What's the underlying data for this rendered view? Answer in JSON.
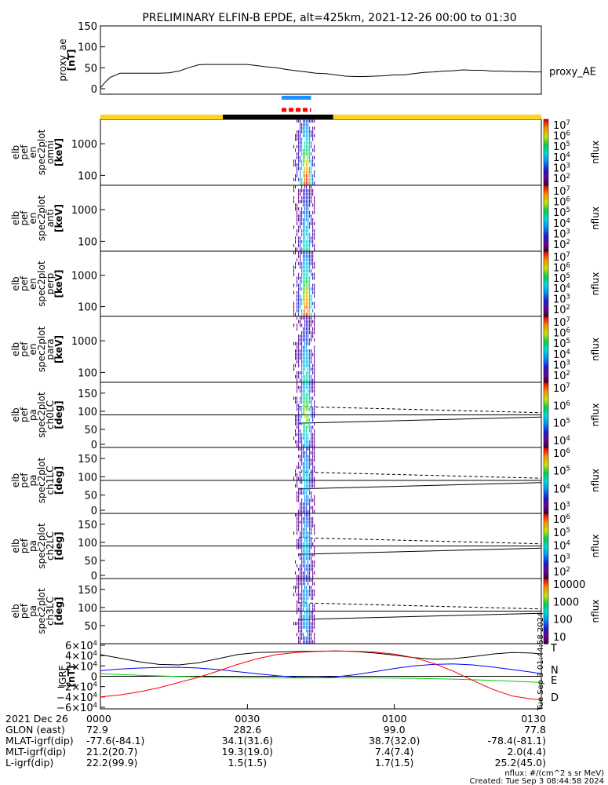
{
  "title": "PRELIMINARY ELFIN-B EPDE, alt=425km, 2021-12-26 00:00 to 01:30",
  "chart_data": [
    {
      "type": "line",
      "name": "proxy_ae",
      "ylabel_lines": [
        "proxy_ae",
        "[nT]"
      ],
      "ylim": [
        0,
        150
      ],
      "yticks": [
        "150",
        "100",
        "50",
        "0"
      ],
      "legend": "proxy_AE",
      "series": [
        {
          "name": "proxy_AE",
          "color": "#000000",
          "x_minutes": [
            0,
            1,
            2,
            4,
            6,
            8,
            10,
            12,
            14,
            16,
            18,
            20,
            21,
            22,
            24,
            26,
            28,
            30,
            32,
            34,
            36,
            38,
            40,
            42,
            44,
            46,
            48,
            50,
            52,
            54,
            56,
            58,
            60,
            62,
            64,
            66,
            68,
            70,
            72,
            74,
            76,
            78,
            80,
            82,
            84,
            86,
            88,
            90
          ],
          "values": [
            2,
            16,
            27,
            37,
            37,
            37,
            37,
            37,
            38,
            42,
            50,
            57,
            58,
            58,
            58,
            58,
            58,
            58,
            55,
            52,
            50,
            46,
            43,
            40,
            37,
            36,
            33,
            30,
            29,
            29,
            30,
            31,
            33,
            33,
            36,
            39,
            40,
            42,
            43,
            45,
            44,
            44,
            42,
            42,
            41,
            41,
            40,
            40
          ]
        }
      ]
    },
    {
      "type": "heatmap",
      "name": "spec2plot_omni",
      "ylabel_lines": [
        "elb",
        "pef",
        "en",
        "spec2plot",
        "omni",
        "[keV]"
      ],
      "yscale": "log",
      "yticks": [
        "1000",
        "100"
      ],
      "colorbar_label": "nflux",
      "colorbar_range_exponent": [
        1,
        7
      ],
      "colorbar_ticks": [
        "10^7",
        "10^6",
        "10^5",
        "10^4",
        "10^3",
        "10^2"
      ],
      "active_time_minutes": [
        39.5,
        43.7
      ]
    },
    {
      "type": "heatmap",
      "name": "spec2plot_anti",
      "ylabel_lines": [
        "elb",
        "pef",
        "en",
        "spec2plot",
        "anti",
        "[keV]"
      ],
      "yscale": "log",
      "yticks": [
        "1000",
        "100"
      ],
      "colorbar_label": "nflux",
      "colorbar_range_exponent": [
        1,
        7
      ],
      "colorbar_ticks": [
        "10^7",
        "10^6",
        "10^5",
        "10^4",
        "10^3",
        "10^2"
      ],
      "active_time_minutes": [
        39.5,
        43.7
      ]
    },
    {
      "type": "heatmap",
      "name": "spec2plot_perp",
      "ylabel_lines": [
        "elb",
        "pef",
        "en",
        "spec2plot",
        "perp",
        "[keV]"
      ],
      "yscale": "log",
      "yticks": [
        "1000",
        "100"
      ],
      "colorbar_label": "nflux",
      "colorbar_range_exponent": [
        1,
        7
      ],
      "colorbar_ticks": [
        "10^7",
        "10^6",
        "10^5",
        "10^4",
        "10^3",
        "10^2"
      ],
      "active_time_minutes": [
        39.5,
        43.7
      ]
    },
    {
      "type": "heatmap",
      "name": "spec2plot_para",
      "ylabel_lines": [
        "elb",
        "pef",
        "en",
        "spec2plot",
        "para",
        "[keV]"
      ],
      "yscale": "log",
      "yticks": [
        "1000",
        "100"
      ],
      "colorbar_label": "nflux",
      "colorbar_range_exponent": [
        1,
        7
      ],
      "colorbar_ticks": [
        "10^7",
        "10^6",
        "10^5",
        "10^4",
        "10^3",
        "10^2"
      ],
      "active_time_minutes": [
        39.5,
        43.7
      ]
    },
    {
      "type": "heatmap",
      "name": "spec2plot_ch0LC",
      "ylabel_lines": [
        "elb",
        "pef",
        "pa",
        "spec2plot",
        "ch0LC",
        "[deg]"
      ],
      "ylim": [
        0,
        180
      ],
      "yticks": [
        "150",
        "100",
        "50",
        "0"
      ],
      "colorbar_label": "nflux",
      "colorbar_ticks": [
        "10^7",
        "10^6",
        "10^5",
        "10^4"
      ],
      "loss_cone_deg": [
        67,
        84
      ],
      "anti_loss_cone_deg": [
        113,
        96
      ]
    },
    {
      "type": "heatmap",
      "name": "spec2plot_ch1LC",
      "ylabel_lines": [
        "elb",
        "pef",
        "pa",
        "spec2plot",
        "ch1LC",
        "[deg]"
      ],
      "ylim": [
        0,
        180
      ],
      "yticks": [
        "150",
        "100",
        "50",
        "0"
      ],
      "colorbar_label": "nflux",
      "colorbar_ticks": [
        "10^6",
        "10^5",
        "10^4",
        "10^3"
      ],
      "loss_cone_deg": [
        67,
        84
      ],
      "anti_loss_cone_deg": [
        113,
        96
      ]
    },
    {
      "type": "heatmap",
      "name": "spec2plot_ch2LC",
      "ylabel_lines": [
        "elb",
        "pef",
        "pa",
        "spec2plot",
        "ch2LC",
        "[deg]"
      ],
      "ylim": [
        0,
        180
      ],
      "yticks": [
        "150",
        "100",
        "50",
        "0"
      ],
      "colorbar_label": "nflux",
      "colorbar_ticks": [
        "10^6",
        "10^5",
        "10^4",
        "10^3",
        "10^2"
      ],
      "loss_cone_deg": [
        67,
        84
      ],
      "anti_loss_cone_deg": [
        113,
        96
      ]
    },
    {
      "type": "heatmap",
      "name": "spec2plot_ch3LC",
      "ylabel_lines": [
        "elb",
        "pef",
        "pa",
        "spec2plot",
        "ch3LC",
        "[deg]"
      ],
      "ylim": [
        0,
        180
      ],
      "yticks": [
        "150",
        "100",
        "50"
      ],
      "colorbar_label": "nflux",
      "colorbar_ticks": [
        "10000",
        "1000",
        "100",
        "10"
      ],
      "loss_cone_deg": [
        67,
        84
      ],
      "anti_loss_cone_deg": [
        113,
        96
      ]
    },
    {
      "type": "line",
      "name": "IGRF",
      "ylabel_lines": [
        "IGRF",
        "[nT]"
      ],
      "ylim": [
        -60000,
        60000
      ],
      "yticks": [
        "6×10^4",
        "4×10^4",
        "2×10^4",
        "0",
        "−2×10^4",
        "−4×10^4",
        "−6×10^4"
      ],
      "series": [
        {
          "name": "T",
          "label": "T",
          "color": "#000000",
          "x_minutes": [
            0,
            4,
            8,
            12,
            16,
            20,
            24,
            28,
            32,
            36,
            40,
            44,
            48,
            52,
            56,
            60,
            64,
            68,
            72,
            76,
            80,
            84,
            88,
            90
          ],
          "values": [
            42000,
            35000,
            28000,
            23000,
            22000,
            26000,
            34000,
            42000,
            46000,
            47000,
            48000,
            48500,
            49000,
            48000,
            45000,
            41000,
            36000,
            33000,
            34000,
            38000,
            43000,
            46000,
            45000,
            43000
          ]
        },
        {
          "name": "N",
          "label": "N",
          "color": "#0000ff",
          "x_minutes": [
            0,
            4,
            8,
            12,
            16,
            20,
            24,
            28,
            32,
            36,
            40,
            44,
            48,
            52,
            56,
            60,
            64,
            68,
            72,
            76,
            80,
            84,
            88,
            90
          ],
          "values": [
            11000,
            14000,
            16000,
            17000,
            17500,
            16000,
            13000,
            9000,
            5000,
            1000,
            -2000,
            -2500,
            -1000,
            3000,
            9000,
            15000,
            20000,
            23000,
            24000,
            22000,
            18000,
            13000,
            8000,
            5000
          ]
        },
        {
          "name": "E",
          "label": "E",
          "color": "#00cc00",
          "x_minutes": [
            0,
            8,
            16,
            24,
            32,
            40,
            48,
            56,
            64,
            72,
            80,
            88,
            90
          ],
          "values": [
            5000,
            2000,
            -500,
            -2000,
            -3000,
            -3200,
            -3000,
            -3200,
            -4000,
            -5500,
            -8000,
            -11000,
            -12000
          ]
        },
        {
          "name": "D",
          "label": "D",
          "color": "#ff0000",
          "x_minutes": [
            0,
            4,
            8,
            12,
            16,
            20,
            24,
            28,
            32,
            36,
            40,
            44,
            48,
            52,
            56,
            60,
            64,
            68,
            72,
            76,
            80,
            84,
            88,
            90
          ],
          "values": [
            -40000,
            -36000,
            -30000,
            -22000,
            -12000,
            -2000,
            10000,
            23000,
            34000,
            42000,
            46000,
            48000,
            49000,
            48500,
            47000,
            43000,
            36000,
            25000,
            10000,
            -8000,
            -25000,
            -38000,
            -44000,
            -45000
          ]
        }
      ]
    }
  ],
  "xaxis": {
    "range_minutes": [
      0,
      90
    ],
    "ticks": [
      {
        "minute": 0,
        "label": "0000"
      },
      {
        "minute": 30,
        "label": "0030"
      },
      {
        "minute": 60,
        "label": "0100"
      },
      {
        "minute": 90,
        "label": "0130"
      }
    ]
  },
  "status_bars": {
    "blue_bar_minutes": [
      37.0,
      43.0
    ],
    "red_dash_bar_minutes": [
      37.0,
      43.0
    ],
    "yellow_black_bar": {
      "yellow_color": "#ffd21e",
      "black_minutes": [
        25.0,
        47.5
      ]
    }
  },
  "footer": {
    "rows": [
      {
        "label": "2021 Dec 26",
        "values": [
          "0000",
          "0030",
          "0100",
          "0130"
        ]
      },
      {
        "label": "GLON (east)",
        "values": [
          "72.9",
          "282.6",
          "99.0",
          "77.8"
        ]
      },
      {
        "label": "MLAT-igrf(dip)",
        "values": [
          "-77.6(-84.1)",
          "34.1(31.6)",
          "38.7(32.0)",
          "-78.4(-81.1)"
        ]
      },
      {
        "label": "MLT-igrf(dip)",
        "values": [
          "21.2(20.7)",
          "19.3(19.0)",
          "7.4(7.4)",
          "2.0(4.4)"
        ]
      },
      {
        "label": "L-igrf(dip)",
        "values": [
          "22.2(99.9)",
          "1.5(1.5)",
          "1.7(1.5)",
          "25.2(45.0)"
        ]
      }
    ],
    "nflux_units": "nflux: #/(cm^2 s sr MeV)",
    "created": "Created: Tue Sep  3 08:44:58 2024",
    "sidebar_stamp": "Tue Sep  3 01:44:58 2024"
  },
  "colors": {
    "yellow": "#ffd21e",
    "blue_bar": "#1e90ff",
    "red_bar": "#ff0000"
  }
}
